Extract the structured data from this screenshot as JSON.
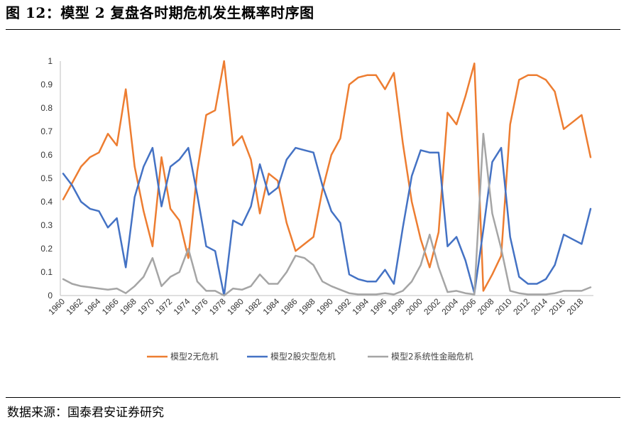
{
  "header": {
    "title": "图 12：模型 2 复盘各时期危机发生概率时序图"
  },
  "footer": {
    "source": "数据来源：国泰君安证券研究"
  },
  "chart_data": {
    "type": "line",
    "title": "",
    "xlabel": "",
    "ylabel": "",
    "ylim": [
      0,
      1
    ],
    "yticks": [
      "0",
      "0.1",
      "0.2",
      "0.3",
      "0.4",
      "0.5",
      "0.6",
      "0.7",
      "0.8",
      "0.9",
      "1"
    ],
    "xticks": [
      "1960",
      "1962",
      "1964",
      "1966",
      "1968",
      "1970",
      "1972",
      "1974",
      "1976",
      "1978",
      "1980",
      "1982",
      "1984",
      "1986",
      "1988",
      "1990",
      "1992",
      "1994",
      "1996",
      "1998",
      "2000",
      "2002",
      "2004",
      "2006",
      "2008",
      "2010",
      "2012",
      "2014",
      "2016",
      "2018"
    ],
    "grid": false,
    "legend_position": "bottom",
    "x": [
      1960,
      1961,
      1962,
      1963,
      1964,
      1965,
      1966,
      1967,
      1968,
      1969,
      1970,
      1971,
      1972,
      1973,
      1974,
      1975,
      1976,
      1977,
      1978,
      1979,
      1980,
      1981,
      1982,
      1983,
      1984,
      1985,
      1986,
      1987,
      1988,
      1989,
      1990,
      1991,
      1992,
      1993,
      1994,
      1995,
      1996,
      1997,
      1998,
      1999,
      2000,
      2001,
      2002,
      2003,
      2004,
      2005,
      2006,
      2007,
      2008,
      2009,
      2010,
      2011,
      2012,
      2013,
      2014,
      2015,
      2016,
      2017,
      2018,
      2019
    ],
    "series": [
      {
        "name": "模型2无危机",
        "color": "#ED7D31",
        "values": [
          0.41,
          0.48,
          0.55,
          0.59,
          0.61,
          0.69,
          0.64,
          0.88,
          0.55,
          0.36,
          0.21,
          0.59,
          0.37,
          0.32,
          0.16,
          0.53,
          0.77,
          0.79,
          1.0,
          0.64,
          0.68,
          0.58,
          0.35,
          0.52,
          0.49,
          0.31,
          0.19,
          0.22,
          0.25,
          0.45,
          0.6,
          0.67,
          0.9,
          0.93,
          0.94,
          0.94,
          0.88,
          0.95,
          0.65,
          0.4,
          0.24,
          0.12,
          0.27,
          0.78,
          0.73,
          0.85,
          0.99,
          0.02,
          0.09,
          0.17,
          0.73,
          0.92,
          0.94,
          0.94,
          0.92,
          0.87,
          0.71,
          0.74,
          0.77,
          0.59
        ]
      },
      {
        "name": "模型2股灾型危机",
        "color": "#4472C4",
        "values": [
          0.52,
          0.47,
          0.4,
          0.37,
          0.36,
          0.29,
          0.33,
          0.12,
          0.42,
          0.55,
          0.63,
          0.38,
          0.55,
          0.58,
          0.63,
          0.43,
          0.21,
          0.19,
          0.0,
          0.32,
          0.3,
          0.38,
          0.56,
          0.43,
          0.46,
          0.58,
          0.63,
          0.62,
          0.61,
          0.47,
          0.36,
          0.31,
          0.09,
          0.07,
          0.06,
          0.06,
          0.11,
          0.05,
          0.29,
          0.51,
          0.62,
          0.61,
          0.61,
          0.21,
          0.25,
          0.15,
          0.01,
          0.28,
          0.57,
          0.63,
          0.25,
          0.08,
          0.05,
          0.05,
          0.07,
          0.13,
          0.26,
          0.24,
          0.22,
          0.37
        ]
      },
      {
        "name": "模型2系统性金融危机",
        "color": "#A5A5A5",
        "values": [
          0.07,
          0.05,
          0.04,
          0.035,
          0.03,
          0.025,
          0.03,
          0.01,
          0.04,
          0.08,
          0.16,
          0.04,
          0.08,
          0.1,
          0.2,
          0.06,
          0.02,
          0.02,
          0.0,
          0.03,
          0.025,
          0.04,
          0.09,
          0.05,
          0.05,
          0.1,
          0.17,
          0.16,
          0.13,
          0.06,
          0.04,
          0.025,
          0.01,
          0.005,
          0.005,
          0.005,
          0.01,
          0.005,
          0.02,
          0.06,
          0.13,
          0.26,
          0.12,
          0.015,
          0.02,
          0.01,
          0.005,
          0.69,
          0.35,
          0.2,
          0.02,
          0.01,
          0.005,
          0.005,
          0.005,
          0.01,
          0.02,
          0.02,
          0.02,
          0.035
        ]
      }
    ]
  }
}
